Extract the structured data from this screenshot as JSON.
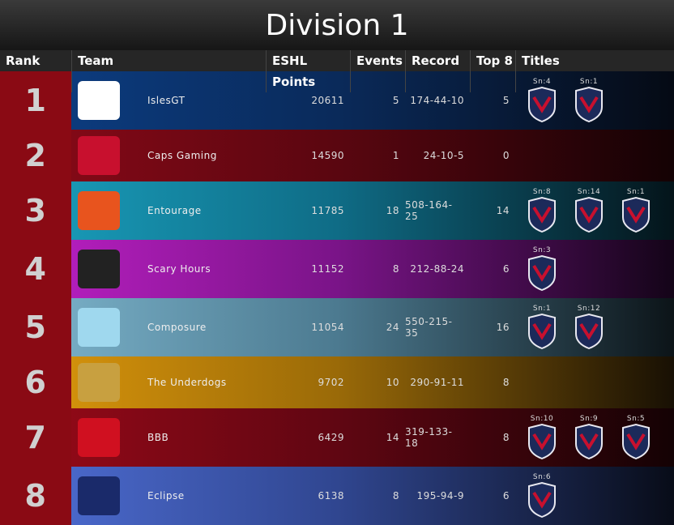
{
  "header": {
    "title": "Division 1"
  },
  "table": {
    "columns": [
      "Rank",
      "Team",
      "ESHL Points",
      "Events",
      "Record",
      "Top 8",
      "Titles"
    ],
    "rows": [
      {
        "rank": 1,
        "team": "IslesGT",
        "points": 20611,
        "events": 5,
        "record": "174-44-10",
        "top8": 5,
        "titles": [
          "Sn:4",
          "Sn:1"
        ]
      },
      {
        "rank": 2,
        "team": "Caps Gaming",
        "points": 14590,
        "events": 1,
        "record": "24-10-5",
        "top8": 0,
        "titles": []
      },
      {
        "rank": 3,
        "team": "Entourage",
        "points": 11785,
        "events": 18,
        "record": "508-164-25",
        "top8": 14,
        "titles": [
          "Sn:8",
          "Sn:14",
          "Sn:1"
        ]
      },
      {
        "rank": 4,
        "team": "Scary Hours",
        "points": 11152,
        "events": 8,
        "record": "212-88-24",
        "top8": 6,
        "titles": [
          "Sn:3"
        ]
      },
      {
        "rank": 5,
        "team": "Composure",
        "points": 11054,
        "events": 24,
        "record": "550-215-35",
        "top8": 16,
        "titles": [
          "Sn:1",
          "Sn:12"
        ]
      },
      {
        "rank": 6,
        "team": "The Underdogs",
        "points": 9702,
        "events": 10,
        "record": "290-91-11",
        "top8": 8,
        "titles": []
      },
      {
        "rank": 7,
        "team": "BBB",
        "points": 6429,
        "events": 14,
        "record": "319-133-18",
        "top8": 8,
        "titles": [
          "Sn:10",
          "Sn:9",
          "Sn:5"
        ]
      },
      {
        "rank": 8,
        "team": "Eclipse",
        "points": 6138,
        "events": 8,
        "record": "195-94-9",
        "top8": 6,
        "titles": [
          "Sn:6"
        ]
      }
    ]
  }
}
